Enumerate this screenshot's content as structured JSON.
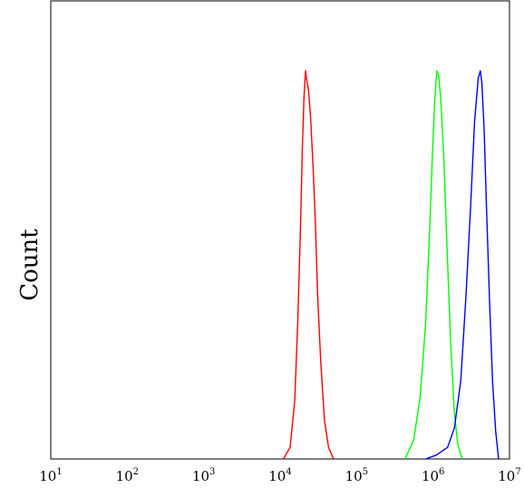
{
  "chart_data": {
    "type": "line",
    "xscale": "log",
    "xlim": [
      10,
      10000000
    ],
    "ylim": [
      0,
      1
    ],
    "ylabel": "Count",
    "xlabel": "",
    "grid": false,
    "legend": "none",
    "x_ticks": [
      {
        "base": "10",
        "exp": "1"
      },
      {
        "base": "10",
        "exp": "2"
      },
      {
        "base": "10",
        "exp": "3"
      },
      {
        "base": "10",
        "exp": "4"
      },
      {
        "base": "10",
        "exp": "5"
      },
      {
        "base": "10",
        "exp": "6"
      },
      {
        "base": "10",
        "exp": "7"
      }
    ],
    "series": [
      {
        "color": "#ff0000",
        "points": [
          [
            11000,
            0
          ],
          [
            13500,
            0.03
          ],
          [
            15500,
            0.15
          ],
          [
            17000,
            0.35
          ],
          [
            18500,
            0.6
          ],
          [
            19500,
            0.8
          ],
          [
            20500,
            0.93
          ],
          [
            21500,
            1.0
          ],
          [
            22500,
            0.97
          ],
          [
            23500,
            0.95
          ],
          [
            25000,
            0.88
          ],
          [
            27000,
            0.75
          ],
          [
            29000,
            0.6
          ],
          [
            31000,
            0.42
          ],
          [
            34000,
            0.25
          ],
          [
            38000,
            0.1
          ],
          [
            43000,
            0.03
          ],
          [
            50000,
            0
          ]
        ]
      },
      {
        "color": "#00ff00",
        "points": [
          [
            430000,
            0
          ],
          [
            560000,
            0.05
          ],
          [
            680000,
            0.16
          ],
          [
            800000,
            0.35
          ],
          [
            900000,
            0.58
          ],
          [
            980000,
            0.78
          ],
          [
            1050000,
            0.92
          ],
          [
            1120000,
            1.0
          ],
          [
            1180000,
            0.99
          ],
          [
            1260000,
            0.93
          ],
          [
            1380000,
            0.78
          ],
          [
            1520000,
            0.55
          ],
          [
            1700000,
            0.3
          ],
          [
            1900000,
            0.12
          ],
          [
            2100000,
            0.04
          ],
          [
            2400000,
            0
          ]
        ]
      },
      {
        "color": "#0000ff",
        "points": [
          [
            800000,
            0
          ],
          [
            1100000,
            0.01
          ],
          [
            1550000,
            0.03
          ],
          [
            1900000,
            0.08
          ],
          [
            2300000,
            0.2
          ],
          [
            2700000,
            0.42
          ],
          [
            3100000,
            0.65
          ],
          [
            3500000,
            0.87
          ],
          [
            3900000,
            0.98
          ],
          [
            4150000,
            1.0
          ],
          [
            4350000,
            0.97
          ],
          [
            4650000,
            0.85
          ],
          [
            5000000,
            0.65
          ],
          [
            5500000,
            0.4
          ],
          [
            6000000,
            0.2
          ],
          [
            6600000,
            0.07
          ],
          [
            7200000,
            0
          ]
        ]
      }
    ]
  }
}
